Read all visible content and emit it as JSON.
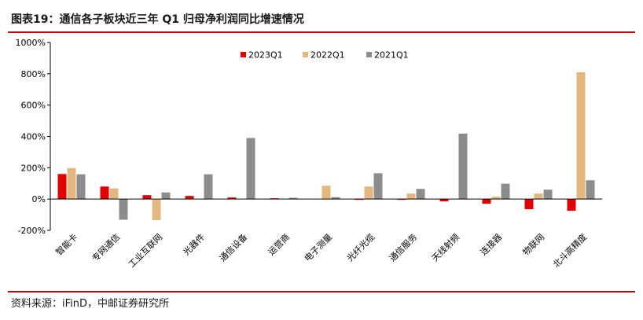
{
  "header": {
    "title": "图表19：通信各子板块近三年 Q1 归母净利润同比增速情况"
  },
  "footer": {
    "source": "资料来源：iFinD，中邮证券研究所"
  },
  "chart_data": {
    "type": "bar",
    "ylim": [
      -200,
      1000
    ],
    "yticks": [
      -200,
      0,
      200,
      400,
      600,
      800,
      1000
    ],
    "ytick_labels": [
      "-200%",
      "0%",
      "200%",
      "400%",
      "600%",
      "800%",
      "1000%"
    ],
    "categories": [
      "智能卡",
      "专网通信",
      "工业互联网",
      "光器件",
      "通信设备",
      "运营商",
      "电子测量",
      "光纤光缆",
      "通信服务",
      "天线射频",
      "连接器",
      "物联网",
      "北斗高精度"
    ],
    "series": [
      {
        "name": "2023Q1",
        "color": "#e00000",
        "values": [
          160,
          80,
          25,
          20,
          10,
          5,
          0,
          -5,
          -5,
          -15,
          -30,
          -65,
          -75
        ]
      },
      {
        "name": "2022Q1",
        "color": "#e3b77d",
        "values": [
          198,
          68,
          -135,
          0,
          0,
          0,
          85,
          80,
          35,
          0,
          15,
          35,
          810
        ]
      },
      {
        "name": "2021Q1",
        "color": "#8c8c8c",
        "values": [
          158,
          -132,
          42,
          158,
          390,
          8,
          12,
          165,
          65,
          418,
          98,
          60,
          120
        ]
      }
    ],
    "legend_position": "top-center",
    "grid": false
  }
}
